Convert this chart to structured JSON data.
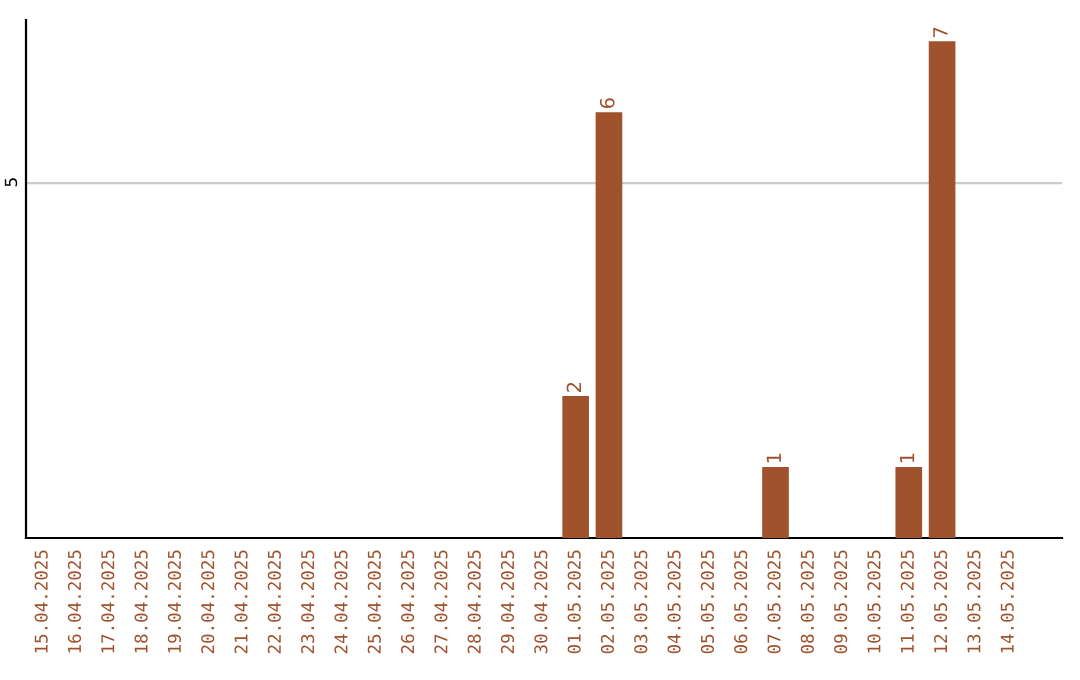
{
  "chart_data": {
    "type": "bar",
    "categories": [
      "15.04.2025",
      "16.04.2025",
      "17.04.2025",
      "18.04.2025",
      "19.04.2025",
      "20.04.2025",
      "21.04.2025",
      "22.04.2025",
      "23.04.2025",
      "24.04.2025",
      "25.04.2025",
      "26.04.2025",
      "27.04.2025",
      "28.04.2025",
      "29.04.2025",
      "30.04.2025",
      "01.05.2025",
      "02.05.2025",
      "03.05.2025",
      "04.05.2025",
      "05.05.2025",
      "06.05.2025",
      "07.05.2025",
      "08.05.2025",
      "09.05.2025",
      "10.05.2025",
      "11.05.2025",
      "12.05.2025",
      "13.05.2025",
      "14.05.2025"
    ],
    "values": [
      null,
      null,
      null,
      null,
      null,
      null,
      null,
      null,
      null,
      null,
      null,
      null,
      null,
      null,
      null,
      null,
      2,
      6,
      null,
      null,
      null,
      null,
      1,
      null,
      null,
      null,
      1,
      7,
      null,
      null
    ],
    "value_labels": [
      null,
      null,
      null,
      null,
      null,
      null,
      null,
      null,
      null,
      null,
      null,
      null,
      null,
      null,
      null,
      null,
      "2",
      "6",
      null,
      null,
      null,
      null,
      "1",
      null,
      null,
      null,
      "1",
      "7",
      null,
      null
    ],
    "color": "#a0522d",
    "ylim": [
      0,
      7.3
    ],
    "yticks": [
      5
    ],
    "grid": "y"
  }
}
